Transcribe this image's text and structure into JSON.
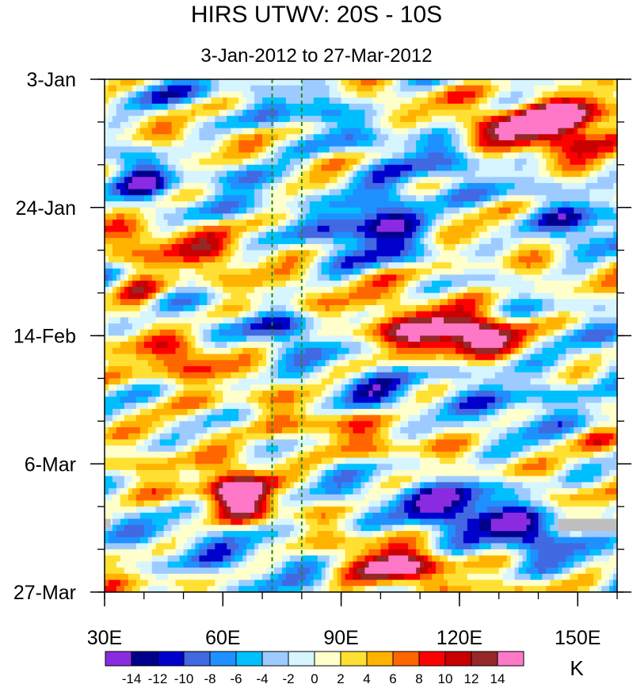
{
  "chart_data": {
    "type": "heatmap",
    "title": "HIRS UTWV: 20S - 10S",
    "subtitle": "3-Jan-2012 to 27-Mar-2012",
    "x_axis": {
      "range": [
        30,
        160
      ],
      "ticks": [
        30,
        60,
        90,
        120,
        150
      ],
      "tick_labels": [
        "30E",
        "60E",
        "90E",
        "120E",
        "150E"
      ],
      "minor_step": 10
    },
    "y_axis": {
      "range_days": [
        0,
        84
      ],
      "ticks_days": [
        0,
        21,
        42,
        63,
        84
      ],
      "tick_labels": [
        "3-Jan",
        "24-Jan",
        "14-Feb",
        "6-Mar",
        "27-Mar"
      ],
      "minor_step_days": 7,
      "direction": "time-increasing-downward"
    },
    "reference_lines_lon": [
      72.5,
      80
    ],
    "reference_line_color": "#1e8c1e",
    "colorbar": {
      "unit_label": "K",
      "levels": [
        -14,
        -12,
        -10,
        -8,
        -6,
        -4,
        -2,
        0,
        2,
        4,
        6,
        8,
        10,
        12,
        14
      ],
      "labels": [
        "-14",
        "-12",
        "-10",
        "-8",
        "-6",
        "-4",
        "-2",
        "0",
        "2",
        "4",
        "6",
        "8",
        "10",
        "12",
        "14"
      ],
      "colors": [
        "#8a2be2",
        "#00008b",
        "#0000cd",
        "#4169e1",
        "#1e90ff",
        "#00bfff",
        "#9ecbff",
        "#d6f5ff",
        "#ffffcc",
        "#ffe033",
        "#ffb300",
        "#ff6600",
        "#ff0000",
        "#c80000",
        "#962828",
        "#ff78c8"
      ]
    },
    "missing_color": "#bebebe",
    "features": [
      {
        "lon": 150,
        "day": 6,
        "value": 14,
        "width_deg": 13,
        "height_days": 4.5
      },
      {
        "lon": 135,
        "day": 8,
        "value": 10,
        "width_deg": 14,
        "height_days": 4
      },
      {
        "lon": 100,
        "day": 23,
        "value": -15,
        "width_deg": 13,
        "height_days": 6
      },
      {
        "lon": 125,
        "day": 41,
        "value": 13,
        "width_deg": 12,
        "height_days": 3.5
      },
      {
        "lon": 112,
        "day": 42,
        "value": 9,
        "width_deg": 17,
        "height_days": 3
      },
      {
        "lon": 52,
        "day": 45,
        "value": 8,
        "width_deg": 12,
        "height_days": 3
      },
      {
        "lon": 38,
        "day": 36,
        "value": 9,
        "width_deg": 6,
        "height_days": 4
      },
      {
        "lon": 52,
        "day": 27,
        "value": 6,
        "width_deg": 20,
        "height_days": 4
      },
      {
        "lon": 65,
        "day": 65,
        "value": 10,
        "width_deg": 10,
        "height_days": 5
      },
      {
        "lon": 65,
        "day": 69,
        "value": 11,
        "width_deg": 7,
        "height_days": 3
      },
      {
        "lon": 103,
        "day": 80,
        "value": 14,
        "width_deg": 11,
        "height_days": 3.5
      },
      {
        "lon": 122,
        "day": 70,
        "value": -13,
        "width_deg": 16,
        "height_days": 4.5
      },
      {
        "lon": 108,
        "day": 34,
        "value": 6,
        "width_deg": 14,
        "height_days": 4
      },
      {
        "lon": 42,
        "day": 3,
        "value": -6,
        "width_deg": 8,
        "height_days": 3
      },
      {
        "lon": 40,
        "day": 16,
        "value": -8,
        "width_deg": 7,
        "height_days": 5
      },
      {
        "lon": 77,
        "day": 41,
        "value": -8,
        "width_deg": 10,
        "height_days": 3
      },
      {
        "lon": 96,
        "day": 52,
        "value": -9,
        "width_deg": 8,
        "height_days": 3
      },
      {
        "lon": 150,
        "day": 25,
        "value": -8,
        "width_deg": 12,
        "height_days": 4
      },
      {
        "lon": 140,
        "day": 75,
        "value": -10,
        "width_deg": 10,
        "height_days": 3
      },
      {
        "lon": 68,
        "day": 16,
        "value": -9,
        "width_deg": 8,
        "height_days": 3
      },
      {
        "lon": 65,
        "day": 76,
        "value": -3,
        "width_deg": 20,
        "height_days": 5
      },
      {
        "lon": 155,
        "day": 60,
        "value": 8,
        "width_deg": 8,
        "height_days": 3
      },
      {
        "lon": 155,
        "day": 52,
        "value": -4,
        "width_deg": 10,
        "height_days": 5
      },
      {
        "lon": 115,
        "day": 12,
        "value": -4,
        "width_deg": 12,
        "height_days": 5
      },
      {
        "lon": 135,
        "day": 50,
        "value": -5,
        "width_deg": 16,
        "height_days": 6
      },
      {
        "lon": 85,
        "day": 4,
        "value": -7,
        "width_deg": 6,
        "height_days": 4
      },
      {
        "lon": 88,
        "day": 58,
        "value": 4,
        "width_deg": 14,
        "height_days": 4
      },
      {
        "lon": 45,
        "day": 57,
        "value": 5,
        "width_deg": 10,
        "height_days": 4
      }
    ]
  }
}
